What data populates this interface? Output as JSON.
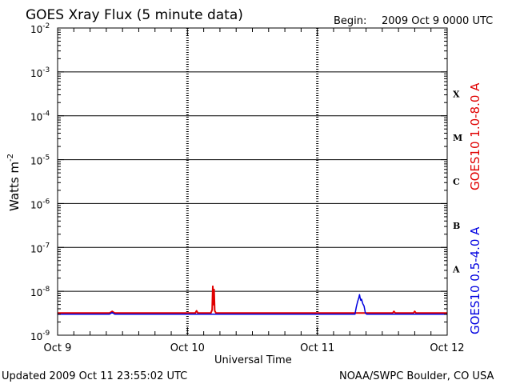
{
  "title": "GOES Xray Flux (5 minute data)",
  "begin_label": "Begin:",
  "begin_value": "2009 Oct 9 0000 UTC",
  "ylabel_base": "Watts m",
  "ylabel_exp": "-2",
  "xlabel": "Universal Time",
  "updated": "Updated 2009 Oct 11 23:55:02 UTC",
  "source": "NOAA/SWPC Boulder, CO USA",
  "colors": {
    "long": "#e00000",
    "short": "#0000e0",
    "frame": "#000000"
  },
  "chart_data": {
    "type": "line",
    "title": "GOES Xray Flux (5 minute data)",
    "xlabel": "Universal Time",
    "ylabel": "Watts m-2",
    "yscale": "log",
    "ylim": [
      1e-09,
      0.01
    ],
    "xlim_days": [
      0,
      3
    ],
    "x_tick_labels": [
      "Oct 9",
      "Oct 10",
      "Oct 11",
      "Oct 12"
    ],
    "y_tick_labels": [
      {
        "base": "10",
        "exp": "-9"
      },
      {
        "base": "10",
        "exp": "-8"
      },
      {
        "base": "10",
        "exp": "-7"
      },
      {
        "base": "10",
        "exp": "-6"
      },
      {
        "base": "10",
        "exp": "-5"
      },
      {
        "base": "10",
        "exp": "-4"
      },
      {
        "base": "10",
        "exp": "-3"
      },
      {
        "base": "10",
        "exp": "-2"
      }
    ],
    "flare_classes": [
      {
        "label": "A",
        "flux": 1e-08
      },
      {
        "label": "B",
        "flux": 1e-07
      },
      {
        "label": "C",
        "flux": 1e-06
      },
      {
        "label": "M",
        "flux": 1e-05
      },
      {
        "label": "X",
        "flux": 0.0001
      }
    ],
    "grid": true,
    "series": [
      {
        "name": "GOES10 1.0-8.0 A",
        "color": "#e00000",
        "points": [
          [
            0.0,
            3.2e-09
          ],
          [
            0.4,
            3.2e-09
          ],
          [
            0.42,
            3.5e-09
          ],
          [
            0.44,
            3.2e-09
          ],
          [
            1.06,
            3.2e-09
          ],
          [
            1.07,
            3.6e-09
          ],
          [
            1.08,
            3.2e-09
          ],
          [
            1.18,
            3.2e-09
          ],
          [
            1.19,
            3.8e-09
          ],
          [
            1.195,
            1.3e-08
          ],
          [
            1.2,
            5e-09
          ],
          [
            1.205,
            1.1e-08
          ],
          [
            1.21,
            3.6e-09
          ],
          [
            1.22,
            3.2e-09
          ],
          [
            2.58,
            3.2e-09
          ],
          [
            2.59,
            3.5e-09
          ],
          [
            2.6,
            3.2e-09
          ],
          [
            2.74,
            3.2e-09
          ],
          [
            2.75,
            3.5e-09
          ],
          [
            2.76,
            3.2e-09
          ],
          [
            3.0,
            3.2e-09
          ]
        ]
      },
      {
        "name": "GOES10 0.5-4.0 A",
        "color": "#0000e0",
        "points": [
          [
            0.0,
            3e-09
          ],
          [
            0.4,
            3e-09
          ],
          [
            0.42,
            3.3e-09
          ],
          [
            0.44,
            3e-09
          ],
          [
            2.29,
            3e-09
          ],
          [
            2.3,
            4.4e-09
          ],
          [
            2.31,
            5.8e-09
          ],
          [
            2.32,
            7.2e-09
          ],
          [
            2.325,
            8.4e-09
          ],
          [
            2.33,
            7e-09
          ],
          [
            2.335,
            6.2e-09
          ],
          [
            2.34,
            6.6e-09
          ],
          [
            2.35,
            5.2e-09
          ],
          [
            2.36,
            4.6e-09
          ],
          [
            2.37,
            3.2e-09
          ],
          [
            2.38,
            3e-09
          ],
          [
            3.0,
            3e-09
          ]
        ]
      }
    ]
  }
}
